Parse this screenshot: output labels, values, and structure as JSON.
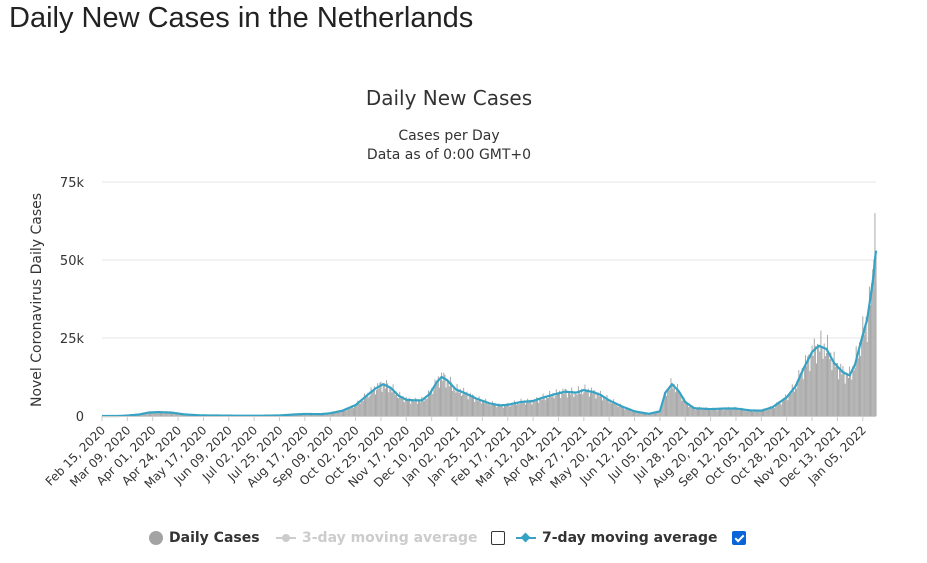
{
  "page": {
    "title": "Daily New Cases in the Netherlands"
  },
  "chart_data": {
    "type": "bar",
    "title": "Daily New Cases",
    "subtitle_lines": [
      "Cases per Day",
      "Data as of 0:00 GMT+0"
    ],
    "ylabel": "Novel Coronavirus Daily Cases",
    "xlabel": "",
    "ylim": [
      0,
      75000
    ],
    "yticks": [
      0,
      25000,
      50000,
      75000
    ],
    "ytick_labels": [
      "0",
      "25k",
      "50k",
      "75k"
    ],
    "grid": "horizontal",
    "x_start": "2020-02-15",
    "x_end": "2022-01-17",
    "xtick_labels": [
      "Feb 15, 2020",
      "Mar 09, 2020",
      "Apr 01, 2020",
      "Apr 24, 2020",
      "May 17, 2020",
      "Jun 09, 2020",
      "Jul 02, 2020",
      "Jul 25, 2020",
      "Aug 17, 2020",
      "Sep 09, 2020",
      "Oct 02, 2020",
      "Oct 25, 2020",
      "Nov 17, 2020",
      "Dec 10, 2020",
      "Jan 02, 2021",
      "Jan 25, 2021",
      "Feb 17, 2021",
      "Mar 12, 2021",
      "Apr 04, 2021",
      "Apr 27, 2021",
      "May 20, 2021",
      "Jun 12, 2021",
      "Jul 05, 2021",
      "Jul 28, 2021",
      "Aug 20, 2021",
      "Sep 12, 2021",
      "Oct 05, 2021",
      "Oct 28, 2021",
      "Nov 20, 2021",
      "Dec 13, 2021",
      "Jan 05, 2022"
    ],
    "series": [
      {
        "name": "Daily Cases",
        "type": "bar",
        "color": "#a3a3a3",
        "visible": true,
        "points": [
          [
            "2020-02-15",
            0
          ],
          [
            "2020-03-01",
            10
          ],
          [
            "2020-03-09",
            150
          ],
          [
            "2020-03-20",
            500
          ],
          [
            "2020-03-28",
            1100
          ],
          [
            "2020-04-06",
            1250
          ],
          [
            "2020-04-18",
            1100
          ],
          [
            "2020-04-30",
            500
          ],
          [
            "2020-05-15",
            200
          ],
          [
            "2020-06-01",
            150
          ],
          [
            "2020-06-20",
            80
          ],
          [
            "2020-07-10",
            100
          ],
          [
            "2020-07-25",
            180
          ],
          [
            "2020-08-08",
            500
          ],
          [
            "2020-08-17",
            650
          ],
          [
            "2020-09-01",
            600
          ],
          [
            "2020-09-09",
            900
          ],
          [
            "2020-09-20",
            1700
          ],
          [
            "2020-10-02",
            3500
          ],
          [
            "2020-10-12",
            6500
          ],
          [
            "2020-10-20",
            8800
          ],
          [
            "2020-10-27",
            10200
          ],
          [
            "2020-11-03",
            9000
          ],
          [
            "2020-11-10",
            6500
          ],
          [
            "2020-11-17",
            5200
          ],
          [
            "2020-11-24",
            5000
          ],
          [
            "2020-12-01",
            5000
          ],
          [
            "2020-12-08",
            7000
          ],
          [
            "2020-12-15",
            11000
          ],
          [
            "2020-12-19",
            12500
          ],
          [
            "2020-12-24",
            11500
          ],
          [
            "2021-01-01",
            8500
          ],
          [
            "2021-01-10",
            7200
          ],
          [
            "2021-01-20",
            5500
          ],
          [
            "2021-02-01",
            4000
          ],
          [
            "2021-02-10",
            3400
          ],
          [
            "2021-02-17",
            3600
          ],
          [
            "2021-03-01",
            4500
          ],
          [
            "2021-03-12",
            4800
          ],
          [
            "2021-03-20",
            5800
          ],
          [
            "2021-04-01",
            7000
          ],
          [
            "2021-04-10",
            7800
          ],
          [
            "2021-04-20",
            7500
          ],
          [
            "2021-04-27",
            8300
          ],
          [
            "2021-05-05",
            7700
          ],
          [
            "2021-05-12",
            6800
          ],
          [
            "2021-05-20",
            5000
          ],
          [
            "2021-06-01",
            3000
          ],
          [
            "2021-06-12",
            1500
          ],
          [
            "2021-06-25",
            700
          ],
          [
            "2021-07-05",
            1500
          ],
          [
            "2021-07-10",
            7500
          ],
          [
            "2021-07-16",
            10200
          ],
          [
            "2021-07-22",
            8000
          ],
          [
            "2021-07-28",
            4500
          ],
          [
            "2021-08-05",
            2500
          ],
          [
            "2021-08-20",
            2200
          ],
          [
            "2021-09-01",
            2400
          ],
          [
            "2021-09-12",
            2400
          ],
          [
            "2021-09-25",
            1800
          ],
          [
            "2021-10-05",
            1700
          ],
          [
            "2021-10-15",
            2800
          ],
          [
            "2021-10-28",
            6000
          ],
          [
            "2021-11-05",
            9500
          ],
          [
            "2021-11-12",
            15000
          ],
          [
            "2021-11-20",
            20500
          ],
          [
            "2021-11-26",
            22500
          ],
          [
            "2021-12-03",
            21500
          ],
          [
            "2021-12-10",
            17000
          ],
          [
            "2021-12-18",
            14000
          ],
          [
            "2021-12-24",
            13000
          ],
          [
            "2021-12-29",
            16500
          ],
          [
            "2022-01-02",
            22000
          ],
          [
            "2022-01-05",
            26000
          ],
          [
            "2022-01-09",
            31000
          ],
          [
            "2022-01-12",
            38000
          ],
          [
            "2022-01-14",
            47000
          ],
          [
            "2022-01-15",
            50000
          ],
          [
            "2022-01-16",
            65000
          ],
          [
            "2022-01-17",
            52000
          ]
        ]
      },
      {
        "name": "3-day moving average",
        "type": "line",
        "color": "#cccccc",
        "visible": false,
        "checked": false
      },
      {
        "name": "7-day moving average",
        "type": "line",
        "color": "#36a2c4",
        "visible": true,
        "checked": true,
        "points": [
          [
            "2020-02-15",
            0
          ],
          [
            "2020-03-01",
            10
          ],
          [
            "2020-03-09",
            150
          ],
          [
            "2020-03-20",
            500
          ],
          [
            "2020-03-28",
            1100
          ],
          [
            "2020-04-06",
            1250
          ],
          [
            "2020-04-18",
            1100
          ],
          [
            "2020-04-30",
            500
          ],
          [
            "2020-05-15",
            200
          ],
          [
            "2020-06-01",
            150
          ],
          [
            "2020-06-20",
            80
          ],
          [
            "2020-07-10",
            100
          ],
          [
            "2020-07-25",
            180
          ],
          [
            "2020-08-08",
            500
          ],
          [
            "2020-08-17",
            650
          ],
          [
            "2020-09-01",
            600
          ],
          [
            "2020-09-09",
            900
          ],
          [
            "2020-09-20",
            1700
          ],
          [
            "2020-10-02",
            3500
          ],
          [
            "2020-10-12",
            6500
          ],
          [
            "2020-10-20",
            8800
          ],
          [
            "2020-10-27",
            10200
          ],
          [
            "2020-11-03",
            9000
          ],
          [
            "2020-11-10",
            6500
          ],
          [
            "2020-11-17",
            5200
          ],
          [
            "2020-11-24",
            5000
          ],
          [
            "2020-12-01",
            5000
          ],
          [
            "2020-12-08",
            7000
          ],
          [
            "2020-12-15",
            11000
          ],
          [
            "2020-12-19",
            12500
          ],
          [
            "2020-12-24",
            11500
          ],
          [
            "2021-01-01",
            8500
          ],
          [
            "2021-01-10",
            7200
          ],
          [
            "2021-01-20",
            5500
          ],
          [
            "2021-02-01",
            4000
          ],
          [
            "2021-02-10",
            3400
          ],
          [
            "2021-02-17",
            3600
          ],
          [
            "2021-03-01",
            4500
          ],
          [
            "2021-03-12",
            4800
          ],
          [
            "2021-03-20",
            5800
          ],
          [
            "2021-04-01",
            7000
          ],
          [
            "2021-04-10",
            7800
          ],
          [
            "2021-04-20",
            7500
          ],
          [
            "2021-04-27",
            8300
          ],
          [
            "2021-05-05",
            7700
          ],
          [
            "2021-05-12",
            6800
          ],
          [
            "2021-05-20",
            5000
          ],
          [
            "2021-06-01",
            3000
          ],
          [
            "2021-06-12",
            1500
          ],
          [
            "2021-06-25",
            700
          ],
          [
            "2021-07-05",
            1500
          ],
          [
            "2021-07-10",
            7500
          ],
          [
            "2021-07-16",
            10200
          ],
          [
            "2021-07-22",
            8000
          ],
          [
            "2021-07-28",
            4500
          ],
          [
            "2021-08-05",
            2500
          ],
          [
            "2021-08-20",
            2200
          ],
          [
            "2021-09-01",
            2400
          ],
          [
            "2021-09-12",
            2400
          ],
          [
            "2021-09-25",
            1800
          ],
          [
            "2021-10-05",
            1700
          ],
          [
            "2021-10-15",
            2800
          ],
          [
            "2021-10-28",
            6000
          ],
          [
            "2021-11-05",
            9500
          ],
          [
            "2021-11-12",
            15000
          ],
          [
            "2021-11-20",
            20500
          ],
          [
            "2021-11-26",
            22500
          ],
          [
            "2021-12-03",
            21500
          ],
          [
            "2021-12-10",
            17000
          ],
          [
            "2021-12-18",
            14000
          ],
          [
            "2021-12-24",
            13000
          ],
          [
            "2021-12-29",
            16500
          ],
          [
            "2022-01-02",
            22000
          ],
          [
            "2022-01-05",
            26000
          ],
          [
            "2022-01-09",
            31000
          ],
          [
            "2022-01-12",
            38000
          ],
          [
            "2022-01-14",
            43000
          ],
          [
            "2022-01-15",
            46000
          ],
          [
            "2022-01-16",
            50000
          ],
          [
            "2022-01-17",
            53000
          ]
        ]
      }
    ],
    "legend": {
      "position": "bottom"
    }
  }
}
